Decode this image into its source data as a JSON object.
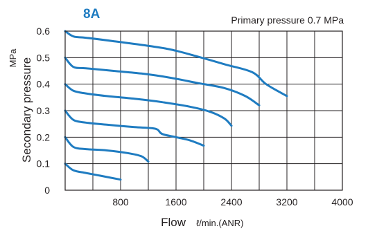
{
  "chart_data": {
    "type": "line",
    "title": "8A",
    "annotation": "Primary pressure 0.7 MPa",
    "xlabel": "Flow",
    "xunit": "ℓ/min.(ANR)",
    "ylabel": "Secondary pressure",
    "yunit": "MPa",
    "xlim": [
      0,
      4000
    ],
    "ylim": [
      0,
      0.6
    ],
    "x_ticks": [
      "800",
      "1600",
      "2400",
      "3200",
      "4000"
    ],
    "y_ticks": [
      "0",
      "0.1",
      "0.2",
      "0.3",
      "0.4",
      "0.5",
      "0.6"
    ],
    "grid": true,
    "line_color": "#1f7cc1",
    "series": [
      {
        "x": [
          0,
          120,
          300,
          500,
          800
        ],
        "y": [
          0.1,
          0.075,
          0.065,
          0.055,
          0.04
        ]
      },
      {
        "x": [
          0,
          120,
          300,
          600,
          900,
          1100,
          1200
        ],
        "y": [
          0.2,
          0.163,
          0.155,
          0.15,
          0.14,
          0.128,
          0.108
        ]
      },
      {
        "x": [
          0,
          120,
          300,
          600,
          1000,
          1300,
          1400,
          1600,
          1800,
          2000
        ],
        "y": [
          0.3,
          0.265,
          0.255,
          0.247,
          0.238,
          0.232,
          0.212,
          0.2,
          0.188,
          0.168
        ]
      },
      {
        "x": [
          0,
          120,
          300,
          600,
          1000,
          1400,
          1800,
          2100,
          2300,
          2400
        ],
        "y": [
          0.4,
          0.375,
          0.365,
          0.355,
          0.345,
          0.332,
          0.315,
          0.295,
          0.27,
          0.243
        ]
      },
      {
        "x": [
          0,
          120,
          300,
          700,
          1100,
          1500,
          1900,
          2300,
          2600,
          2800
        ],
        "y": [
          0.5,
          0.465,
          0.46,
          0.45,
          0.44,
          0.425,
          0.405,
          0.385,
          0.355,
          0.32
        ]
      },
      {
        "x": [
          0,
          120,
          300,
          700,
          1100,
          1500,
          1900,
          2300,
          2700,
          2900,
          3200
        ],
        "y": [
          0.6,
          0.58,
          0.575,
          0.562,
          0.548,
          0.532,
          0.505,
          0.475,
          0.445,
          0.4,
          0.355
        ]
      }
    ]
  }
}
